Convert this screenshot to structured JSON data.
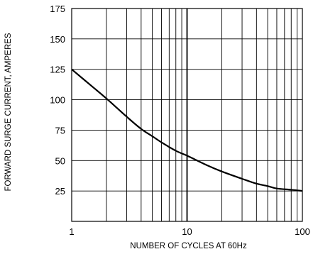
{
  "chart_data": {
    "type": "line",
    "xlabel": "NUMBER OF CYCLES AT 60Hz",
    "ylabel": "FORWARD SURGE CURRENT, AMPERES",
    "x_scale": "log",
    "xlim": [
      1,
      100
    ],
    "ylim": [
      0,
      175
    ],
    "x_ticks": [
      "1",
      "10",
      "100"
    ],
    "y_ticks": [
      "25",
      "50",
      "75",
      "100",
      "125",
      "150",
      "175"
    ],
    "grid": true,
    "series": [
      {
        "x": [
          1,
          1.5,
          2,
          3,
          4,
          5,
          6,
          8,
          10,
          15,
          20,
          30,
          40,
          50,
          60,
          80,
          100
        ],
        "values": [
          125,
          111,
          101,
          86,
          76,
          70,
          65,
          58,
          54,
          46,
          41,
          35,
          31,
          29,
          27,
          26,
          25
        ]
      }
    ]
  }
}
